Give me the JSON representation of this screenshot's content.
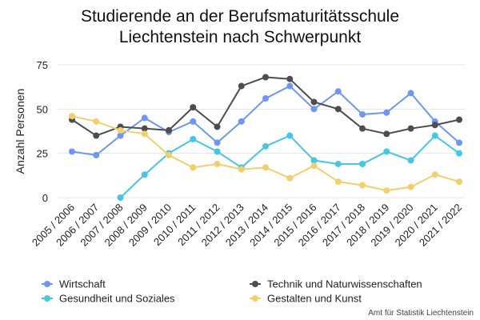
{
  "chart_data": {
    "type": "line",
    "title": "Studierende an der Berufsmaturitätsschule Liechtenstein nach Schwerpunkt",
    "title_lines": [
      "Studierende an der Berufsmaturitätsschule",
      "Liechtenstein nach Schwerpunkt"
    ],
    "ylabel": "Anzahl Personen",
    "xlabel": "",
    "ylim": [
      0,
      75
    ],
    "yticks": [
      0,
      25,
      50,
      75
    ],
    "grid": "horizontal",
    "legend_position": "bottom",
    "categories": [
      "2005 / 2006",
      "2006 / 2007",
      "2007 / 2008",
      "2008 / 2009",
      "2009 / 2010",
      "2010 / 2011",
      "2011 / 2012",
      "2012 / 2013",
      "2013 / 2014",
      "2014 / 2015",
      "2015 / 2016",
      "2016 / 2017",
      "2017 / 2018",
      "2018 / 2019",
      "2019 / 2020",
      "2020 / 2021",
      "2021 / 2022"
    ],
    "series": [
      {
        "name": "Wirtschaft",
        "color": "#6f96f2",
        "values": [
          26,
          24,
          35,
          45,
          37,
          43,
          31,
          43,
          56,
          63,
          50,
          60,
          47,
          48,
          59,
          43,
          31
        ]
      },
      {
        "name": "Technik und Naturwissenschaften",
        "color": "#4d4d4d",
        "values": [
          44,
          35,
          40,
          39,
          38,
          51,
          40,
          63,
          68,
          67,
          54,
          50,
          39,
          36,
          39,
          41,
          44
        ]
      },
      {
        "name": "Gesundheit und Soziales",
        "color": "#47c6e4",
        "values": [
          null,
          null,
          0,
          13,
          25,
          33,
          26,
          17,
          29,
          35,
          21,
          19,
          19,
          26,
          21,
          35,
          25
        ]
      },
      {
        "name": "Gestalten und Kunst",
        "color": "#f2cf6c",
        "values": [
          46,
          43,
          38,
          36,
          24,
          17,
          19,
          16,
          17,
          11,
          18,
          9,
          7,
          4,
          6,
          13,
          9
        ]
      }
    ],
    "source": "Amt für Statistik Liechtenstein"
  }
}
